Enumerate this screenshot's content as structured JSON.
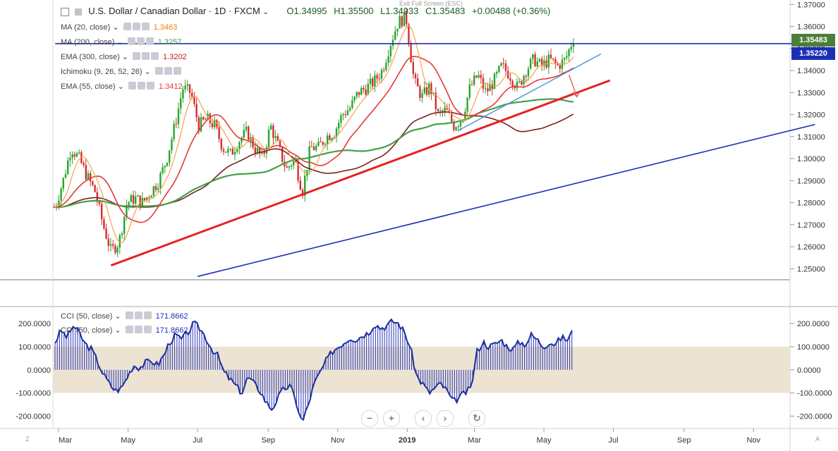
{
  "header": {
    "symbol": "U.S. Dollar / Canadian Dollar",
    "interval": "1D",
    "source": "FXCM",
    "open": "O1.34995",
    "high": "H1.35500",
    "low": "L1.34933",
    "close": "C1.35483",
    "change": "+0.00488 (+0.36%)",
    "exit_fullscreen": "Exit Full Screen (ESC)"
  },
  "indicators": [
    {
      "label": "MA (20, close)",
      "value": "1.3463",
      "color": "#f57c00"
    },
    {
      "label": "MA (200, close)",
      "value": "1.3257",
      "color": "#43a047"
    },
    {
      "label": "EMA (300, close)",
      "value": "1.3202",
      "color": "#b71c1c"
    },
    {
      "label": "Ichimoku (9, 26, 52, 26)",
      "value": "",
      "color": "#1e88e5"
    },
    {
      "label": "EMA (55, close)",
      "value": "1.3412",
      "color": "#e53935"
    }
  ],
  "cci_legends": [
    {
      "label": "CCI (50, close)",
      "value": "171.8662"
    },
    {
      "label": "CCI (50, close)",
      "value": "171.8662"
    }
  ],
  "price_tags": {
    "last": "1.35483",
    "line": "1.35220"
  },
  "corner_labels": {
    "left": "Z",
    "right": "A"
  },
  "zoom": {
    "minus": "−",
    "plus": "+",
    "left": "‹",
    "right": "›",
    "reset": "↻"
  },
  "chart_data": [
    {
      "type": "candlestick",
      "title": "U.S. Dollar / Canadian Dollar, 1D, FXCM",
      "x_ticks": [
        "Mar",
        "May",
        "Jul",
        "Sep",
        "Nov",
        "2019",
        "Mar",
        "May",
        "Jul",
        "Sep",
        "Nov"
      ],
      "y_ticks": [
        "1.37000",
        "1.36000",
        "1.35000",
        "1.34000",
        "1.33000",
        "1.32000",
        "1.31000",
        "1.30000",
        "1.29000",
        "1.28000",
        "1.27000",
        "1.26000",
        "1.25000"
      ],
      "ylim": [
        1.245,
        1.372
      ],
      "close_path": [
        [
          "2018-02-26",
          1.278
        ],
        [
          "2018-03-05",
          1.29
        ],
        [
          "2018-03-12",
          1.305
        ],
        [
          "2018-03-19",
          1.3
        ],
        [
          "2018-03-26",
          1.292
        ],
        [
          "2018-04-02",
          1.285
        ],
        [
          "2018-04-09",
          1.27
        ],
        [
          "2018-04-16",
          1.258
        ],
        [
          "2018-04-23",
          1.262
        ],
        [
          "2018-04-30",
          1.28
        ],
        [
          "2018-05-07",
          1.282
        ],
        [
          "2018-05-14",
          1.28
        ],
        [
          "2018-05-21",
          1.285
        ],
        [
          "2018-05-28",
          1.29
        ],
        [
          "2018-06-04",
          1.3
        ],
        [
          "2018-06-11",
          1.315
        ],
        [
          "2018-06-18",
          1.332
        ],
        [
          "2018-06-25",
          1.33
        ],
        [
          "2018-07-02",
          1.315
        ],
        [
          "2018-07-09",
          1.318
        ],
        [
          "2018-07-16",
          1.315
        ],
        [
          "2018-07-23",
          1.305
        ],
        [
          "2018-07-30",
          1.302
        ],
        [
          "2018-08-06",
          1.308
        ],
        [
          "2018-08-13",
          1.312
        ],
        [
          "2018-08-20",
          1.305
        ],
        [
          "2018-08-27",
          1.3
        ],
        [
          "2018-09-03",
          1.315
        ],
        [
          "2018-09-10",
          1.305
        ],
        [
          "2018-09-17",
          1.295
        ],
        [
          "2018-09-24",
          1.3
        ],
        [
          "2018-10-01",
          1.285
        ],
        [
          "2018-10-08",
          1.305
        ],
        [
          "2018-10-15",
          1.305
        ],
        [
          "2018-10-22",
          1.31
        ],
        [
          "2018-10-29",
          1.312
        ],
        [
          "2018-11-05",
          1.32
        ],
        [
          "2018-11-12",
          1.323
        ],
        [
          "2018-11-19",
          1.33
        ],
        [
          "2018-11-26",
          1.332
        ],
        [
          "2018-12-03",
          1.335
        ],
        [
          "2018-12-10",
          1.34
        ],
        [
          "2018-12-17",
          1.352
        ],
        [
          "2018-12-24",
          1.362
        ],
        [
          "2018-12-31",
          1.364
        ],
        [
          "2019-01-07",
          1.335
        ],
        [
          "2019-01-14",
          1.328
        ],
        [
          "2019-01-21",
          1.333
        ],
        [
          "2019-01-28",
          1.32
        ],
        [
          "2019-02-04",
          1.322
        ],
        [
          "2019-02-11",
          1.315
        ],
        [
          "2019-02-18",
          1.318
        ],
        [
          "2019-02-25",
          1.332
        ],
        [
          "2019-03-04",
          1.338
        ],
        [
          "2019-03-11",
          1.33
        ],
        [
          "2019-03-18",
          1.335
        ],
        [
          "2019-03-25",
          1.342
        ],
        [
          "2019-04-01",
          1.338
        ],
        [
          "2019-04-08",
          1.332
        ],
        [
          "2019-04-15",
          1.34
        ],
        [
          "2019-04-22",
          1.345
        ],
        [
          "2019-04-29",
          1.342
        ],
        [
          "2019-05-06",
          1.345
        ],
        [
          "2019-05-13",
          1.342
        ],
        [
          "2019-05-20",
          1.345
        ],
        [
          "2019-05-27",
          1.35483
        ]
      ],
      "lines": [
        {
          "name": "EMA (300, close)",
          "value": 1.3202,
          "color": "#7b1f1f"
        },
        {
          "name": "MA (200, close)",
          "value": 1.3257,
          "color": "#43a047"
        },
        {
          "name": "EMA (55, close)",
          "value": 1.3412,
          "color": "#e53935"
        },
        {
          "name": "MA (20, close)",
          "value": 1.3463,
          "color": "#f5a34a"
        }
      ],
      "trendlines": [
        {
          "name": "red support",
          "from": [
            "2018-04-16",
            1.2515
          ],
          "to": [
            "2019-06-28",
            1.3355
          ],
          "color": "#e52222"
        },
        {
          "name": "blue long support",
          "from": [
            "2018-07-01",
            1.2465
          ],
          "to": [
            "2019-12-25",
            1.3155
          ],
          "color": "#1b2fb5"
        },
        {
          "name": "light blue short support",
          "from": [
            "2019-02-14",
            1.3125
          ],
          "to": [
            "2019-06-20",
            1.3475
          ],
          "color": "#4a90d9"
        },
        {
          "name": "horizontal resistance",
          "from": [
            "2018-02-26",
            1.3522
          ],
          "to": [
            "2019-12-31",
            1.3522
          ],
          "color": "#1b2fb5"
        }
      ],
      "annotations": [
        {
          "type": "arrow",
          "from": [
            "2019-05-23",
            1.338
          ],
          "to": [
            "2019-05-30",
            1.328
          ],
          "color": "#e55a5a"
        }
      ]
    },
    {
      "type": "area",
      "title": "CCI (50, close)",
      "y_ticks": [
        "200.0000",
        "100.0000",
        "0.0000",
        "-100.0000",
        "-200.0000"
      ],
      "ylim": [
        -250,
        270
      ],
      "band": [
        -100,
        100
      ],
      "last_value": 171.8662,
      "values": [
        120,
        170,
        140,
        190,
        160,
        110,
        90,
        40,
        -20,
        -60,
        -90,
        -80,
        -30,
        20,
        10,
        30,
        40,
        20,
        60,
        120,
        150,
        130,
        160,
        200,
        180,
        140,
        90,
        60,
        -10,
        -40,
        -70,
        -100,
        -30,
        -60,
        -90,
        -140,
        -170,
        -120,
        -80,
        -70,
        -140,
        -230,
        -150,
        -60,
        -10,
        40,
        80,
        100,
        120,
        140,
        130,
        150,
        160,
        200,
        180,
        190,
        210,
        200,
        160,
        90,
        -30,
        -60,
        -100,
        -80,
        -60,
        -90,
        -140,
        -120,
        -100,
        -80,
        80,
        120,
        100,
        110,
        130,
        100,
        90,
        120,
        110,
        150,
        130,
        100,
        120,
        110,
        140,
        130,
        171.8662
      ]
    }
  ]
}
